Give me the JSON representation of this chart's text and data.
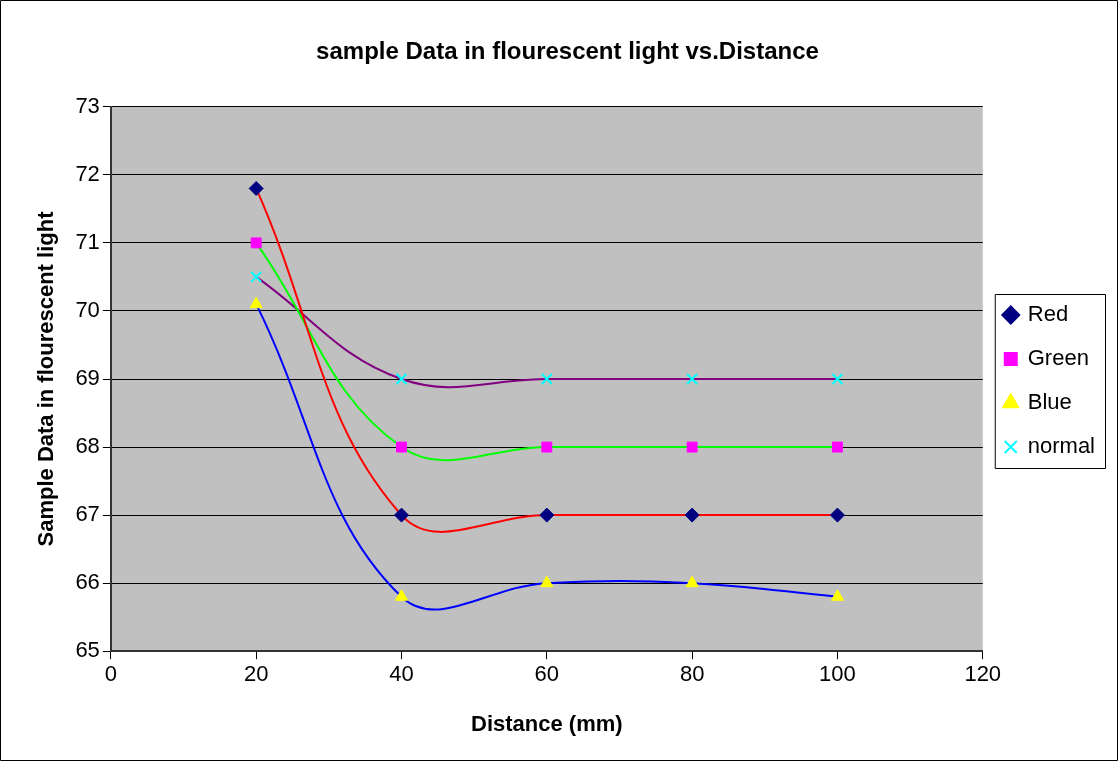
{
  "chart_data": {
    "type": "line",
    "title": "sample Data in flourescent light vs.Distance",
    "xlabel": "Distance (mm)",
    "ylabel": "Sample Data in flourescent light",
    "x": [
      20,
      40,
      60,
      80,
      100
    ],
    "series": [
      {
        "name": "Red",
        "color": "#ff0000",
        "colors": [
          "#000080",
          "#000080",
          "#000080",
          "#000080",
          "#000080"
        ],
        "marker": "diamond",
        "values": [
          71.8,
          67,
          67,
          67,
          67
        ]
      },
      {
        "name": "Green",
        "color": "#00ff00",
        "colors": [
          "#ff00ff",
          "#ff00ff",
          "#ff00ff",
          "#ff00ff",
          "#ff00ff"
        ],
        "marker": "square",
        "values": [
          71,
          68,
          68,
          68,
          68
        ]
      },
      {
        "name": "Blue",
        "color": "#0000ff",
        "colors": [
          "#ffff00",
          "#ffff00",
          "#ffff00",
          "#ffff00",
          "#ffff00"
        ],
        "marker": "triangle",
        "values": [
          70.1,
          65.8,
          66,
          66,
          65.8
        ]
      },
      {
        "name": "normal",
        "color": "#800080",
        "colors": [
          "#00ffff",
          "#00ffff",
          "#00ffff",
          "#00ffff",
          "#00ffff"
        ],
        "marker": "cross",
        "values": [
          70.5,
          69,
          69,
          69,
          69
        ]
      }
    ],
    "xlim": [
      0,
      120
    ],
    "xticks": [
      0,
      20,
      40,
      60,
      80,
      100,
      120
    ],
    "ylim": [
      65,
      73
    ],
    "yticks": [
      65,
      66,
      67,
      68,
      69,
      70,
      71,
      72,
      73
    ],
    "grid": "y",
    "legend": "right"
  }
}
